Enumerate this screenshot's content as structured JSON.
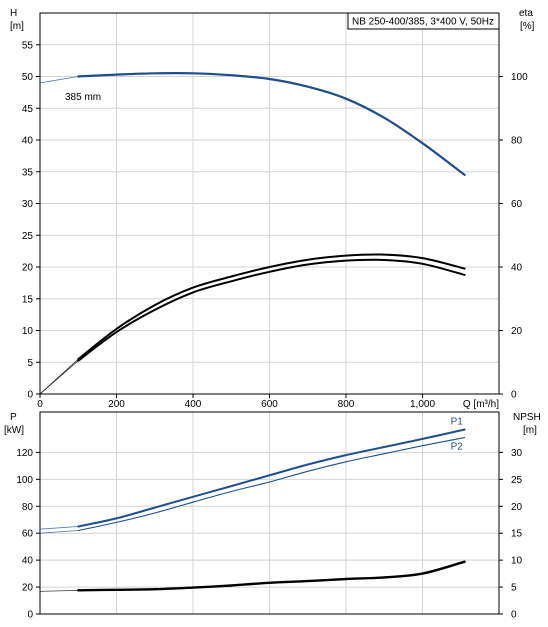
{
  "colors": {
    "flow_curve": "#1f4e8c",
    "power_curve": "#1f4e8c",
    "eff_curve": "#000000",
    "npsh_curve": "#000000",
    "grid": "#d4d4d4"
  },
  "chart_data": [
    {
      "type": "line",
      "title": "NB 250-400/385, 3*400 V, 50Hz",
      "xlabel": "Q [m³/h]",
      "ylabel": "H\n[m]",
      "y2label": "eta\n[%]",
      "xlim": [
        0,
        1200
      ],
      "ylim": [
        0,
        60
      ],
      "y2lim": [
        0,
        120
      ],
      "x_ticks": [
        "0",
        "200",
        "400",
        "600",
        "800",
        "1,000",
        "Q [m³/h]"
      ],
      "y_ticks": [
        "0",
        "5",
        "10",
        "15",
        "20",
        "25",
        "30",
        "35",
        "40",
        "45",
        "50",
        "55"
      ],
      "y2_ticks": [
        "0",
        "20",
        "40",
        "60",
        "80",
        "100"
      ],
      "grid": true,
      "annotation": "385 mm",
      "series": [
        {
          "name": "385 mm",
          "axis": "H",
          "x": [
            0,
            100,
            200,
            300,
            400,
            500,
            600,
            700,
            800,
            900,
            1000,
            1110
          ],
          "values": [
            49.0,
            50.0,
            50.3,
            50.5,
            50.5,
            50.2,
            49.6,
            48.4,
            46.5,
            43.5,
            39.5,
            34.5
          ]
        },
        {
          "axis": "eta",
          "x": [
            0,
            100,
            200,
            300,
            400,
            500,
            600,
            700,
            800,
            900,
            1000,
            1110
          ],
          "values": [
            0,
            11,
            20.5,
            28,
            33.5,
            37,
            40,
            42.3,
            43.6,
            43.9,
            42.8,
            39.5
          ]
        },
        {
          "axis": "eta",
          "x": [
            0,
            100,
            200,
            300,
            400,
            500,
            600,
            700,
            800,
            900,
            1000,
            1110
          ],
          "values": [
            0,
            10.5,
            19.5,
            26.5,
            32,
            35.5,
            38.5,
            40.8,
            42,
            42.2,
            41,
            37.5
          ]
        }
      ]
    },
    {
      "type": "line",
      "ylabel": "P\n[kW]",
      "y2label": "NPSH\n[m]",
      "xlim": [
        0,
        1200
      ],
      "ylim": [
        0,
        150
      ],
      "y2lim": [
        0,
        37.5
      ],
      "y_ticks": [
        "0",
        "20",
        "40",
        "60",
        "80",
        "100",
        "120"
      ],
      "y2_ticks": [
        "0",
        "5",
        "10",
        "15",
        "20",
        "25",
        "30"
      ],
      "grid": true,
      "series": [
        {
          "name": "P1",
          "axis": "P",
          "x": [
            0,
            100,
            200,
            300,
            400,
            500,
            600,
            700,
            800,
            900,
            1000,
            1110
          ],
          "values": [
            63,
            65,
            71,
            79,
            87,
            95,
            103,
            111,
            118,
            124,
            130,
            137
          ]
        },
        {
          "name": "P2",
          "axis": "P",
          "x": [
            0,
            100,
            200,
            300,
            400,
            500,
            600,
            700,
            800,
            900,
            1000,
            1110
          ],
          "values": [
            60,
            62,
            68,
            75,
            83,
            91,
            98,
            106,
            113,
            119,
            125,
            131
          ]
        },
        {
          "axis": "NPSH",
          "x": [
            0,
            100,
            200,
            300,
            400,
            500,
            600,
            700,
            800,
            900,
            1000,
            1110
          ],
          "values": [
            4.2,
            4.4,
            4.5,
            4.6,
            4.9,
            5.3,
            5.8,
            6.1,
            6.5,
            6.8,
            7.5,
            9.7
          ]
        }
      ]
    }
  ]
}
